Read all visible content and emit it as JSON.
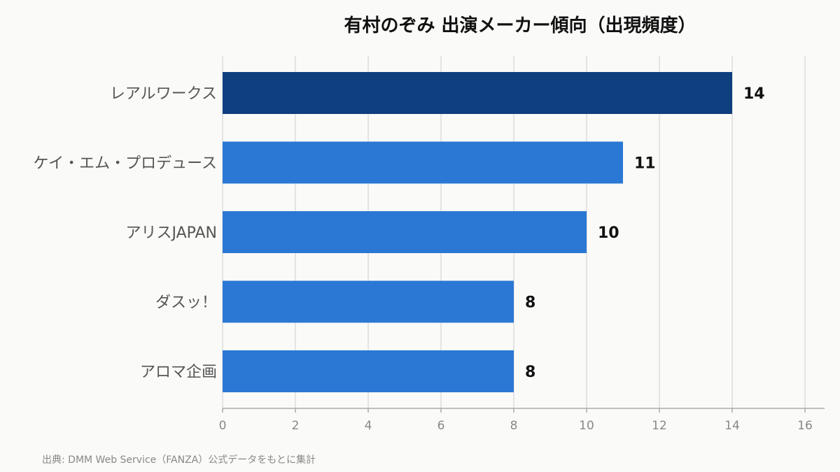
{
  "chart_data": {
    "type": "bar",
    "orientation": "horizontal",
    "title": "有村のぞみ 出演メーカー傾向（出現頻度）",
    "categories": [
      "レアルワークス",
      "ケイ・エム・プロデュース",
      "アリスJAPAN",
      "ダスッ！",
      "アロマ企画"
    ],
    "values": [
      14,
      11,
      10,
      8,
      8
    ],
    "value_labels": [
      "14",
      "11",
      "10",
      "8",
      "8"
    ],
    "xlim": [
      0,
      16
    ],
    "xticks": [
      0,
      2,
      4,
      6,
      8,
      10,
      12,
      14,
      16
    ],
    "xtick_labels": [
      "0",
      "2",
      "4",
      "6",
      "8",
      "10",
      "12",
      "14",
      "16"
    ],
    "grid": "vertical",
    "colors": {
      "highlight": "#0f3f7f",
      "bar": "#2a78d4"
    },
    "highlight_index": 0,
    "source": "出典: DMM Web Service（FANZA）公式データをもとに集計"
  }
}
